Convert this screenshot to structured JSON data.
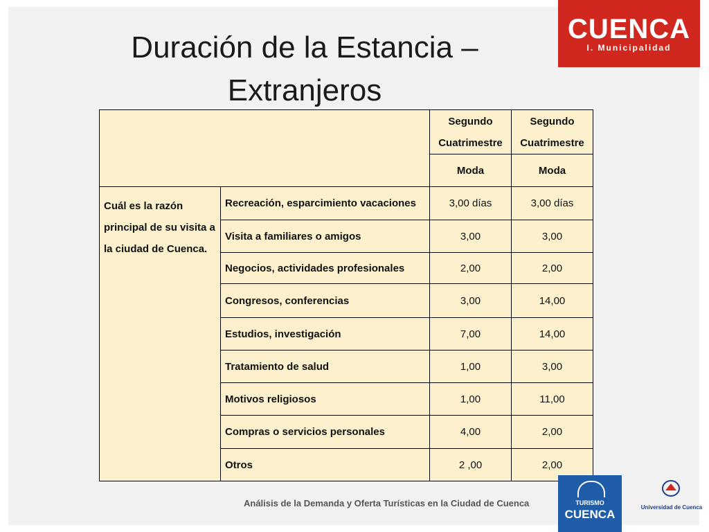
{
  "title": "Duración de la Estancia – Extranjeros",
  "logo": {
    "main": "CUENCA",
    "sub": "I. Municipalidad"
  },
  "table": {
    "headers": [
      {
        "top": "Segundo Cuatrimestre",
        "bottom": "Moda"
      },
      {
        "top": "Segundo Cuatrimestre",
        "bottom": "Moda"
      }
    ],
    "question": "Cuál es la razón principal de su visita a la ciudad de Cuenca.",
    "rows": [
      {
        "label": "Recreación, esparcimiento vacaciones",
        "v1": "3,00 días",
        "v2": "3,00 días"
      },
      {
        "label": "Visita a familiares o amigos",
        "v1": "3,00",
        "v2": "3,00"
      },
      {
        "label": "Negocios, actividades profesionales",
        "v1": "2,00",
        "v2": "2,00"
      },
      {
        "label": "Congresos, conferencias",
        "v1": "3,00",
        "v2": "14,00"
      },
      {
        "label": "Estudios, investigación",
        "v1": "7,00",
        "v2": "14,00"
      },
      {
        "label": "Tratamiento de salud",
        "v1": "1,00",
        "v2": "3,00"
      },
      {
        "label": "Motivos religiosos",
        "v1": "1,00",
        "v2": "11,00"
      },
      {
        "label": "Compras o servicios personales",
        "v1": "4,00",
        "v2": "2,00"
      },
      {
        "label": "Otros",
        "v1": "2 ,00",
        "v2": "2,00"
      }
    ]
  },
  "footer": {
    "text": "Análisis de la Demanda y Oferta Turísticas en la Ciudad de Cuenca",
    "turismo_top": "TURISMO",
    "turismo_main": "CUENCA",
    "university": "Universidad de Cuenca"
  },
  "colors": {
    "table_bg": "#fdf0cc",
    "logo_red": "#d0281e",
    "turismo_blue": "#1f5da8"
  }
}
